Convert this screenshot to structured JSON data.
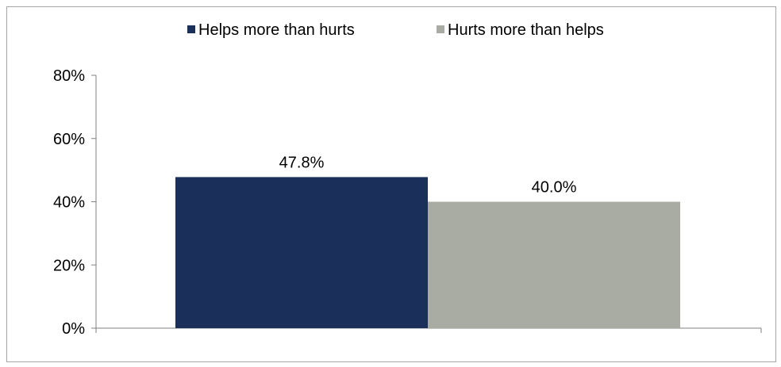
{
  "chart_data": {
    "type": "bar",
    "categories": [
      ""
    ],
    "series": [
      {
        "name": "Helps more than hurts",
        "values": [
          47.8
        ],
        "label": "47.8%",
        "color": "#1a2f5a"
      },
      {
        "name": "Hurts more than helps",
        "values": [
          40.0
        ],
        "label": "40.0%",
        "color": "#a8aca3"
      }
    ],
    "ylim": [
      0,
      80
    ],
    "yticks": [
      "0%",
      "20%",
      "40%",
      "60%",
      "80%"
    ],
    "ytick_values": [
      0,
      20,
      40,
      60,
      80
    ],
    "grid": false,
    "legend_position": "top-center",
    "axis_color": "#808080"
  }
}
